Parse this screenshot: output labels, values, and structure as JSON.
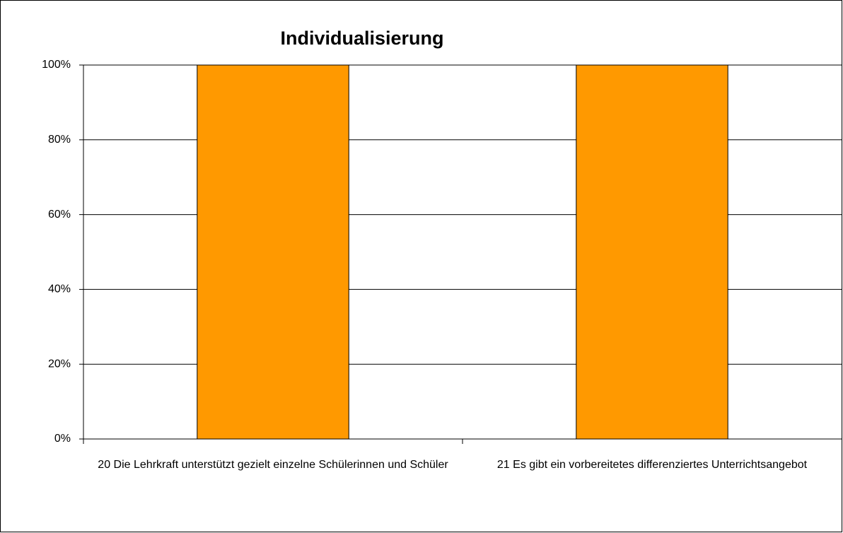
{
  "chart_data": {
    "type": "bar",
    "title": "Individualisierung",
    "categories": [
      "20 Die Lehrkraft unterstützt gezielt einzelne Schülerinnen und Schüler",
      "21 Es gibt ein vorbereitetes differenziertes Unterrichtsangebot"
    ],
    "values": [
      100,
      100
    ],
    "color": "#ff9900",
    "ylim": [
      0,
      100
    ],
    "yticks": [
      {
        "value": 0,
        "label": "0%"
      },
      {
        "value": 20,
        "label": "20%"
      },
      {
        "value": 40,
        "label": "40%"
      },
      {
        "value": 60,
        "label": "60%"
      },
      {
        "value": 80,
        "label": "80%"
      },
      {
        "value": 100,
        "label": "100%"
      }
    ],
    "grid": true
  }
}
